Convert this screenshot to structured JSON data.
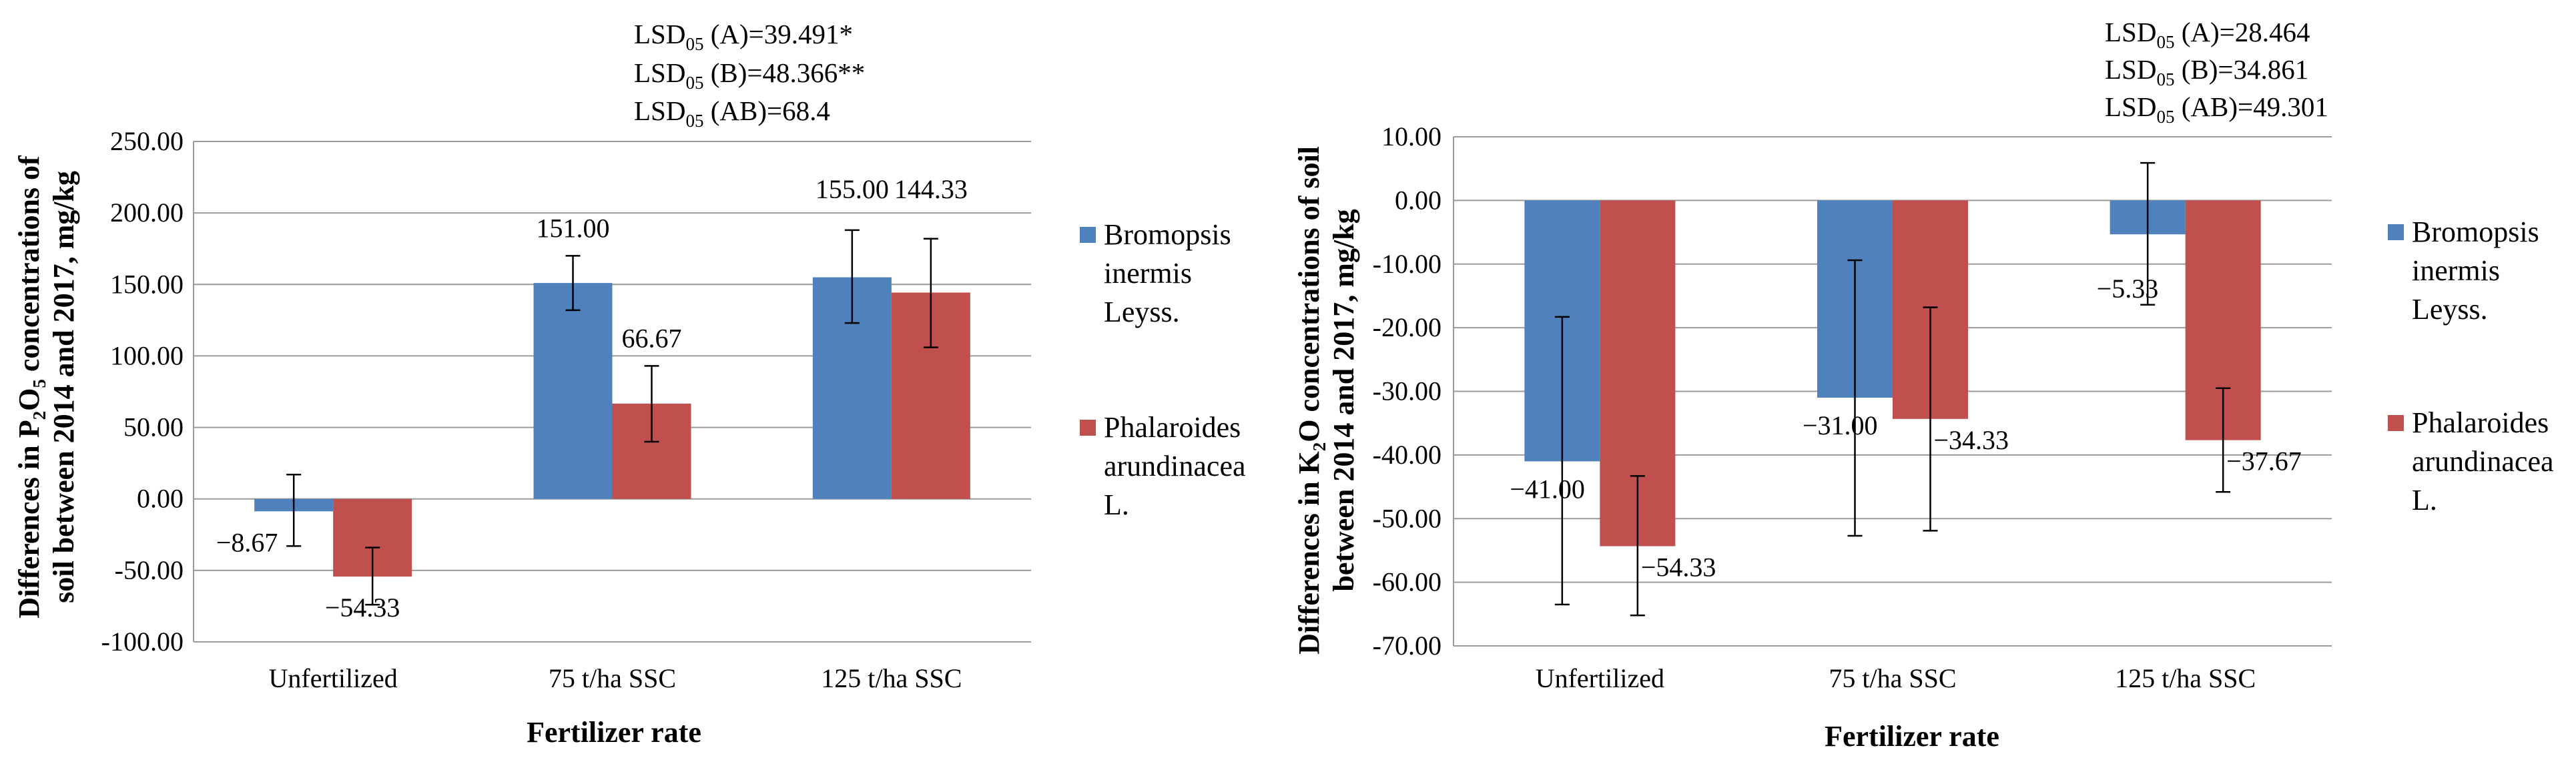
{
  "charts": [
    {
      "y_title_line1_prefix": "Differences in P",
      "y_title_sub1": "2",
      "y_title_mid": "O",
      "y_title_sub2": "5",
      "y_title_line1_suffix": " concentrations of",
      "y_title_line2": "soil between 2014 and 2017, mg/kg",
      "lsd": [
        {
          "prefix": "LSD",
          "sub": "05",
          "rest": " (A)=39.491*"
        },
        {
          "prefix": "LSD",
          "sub": "05",
          "rest": " (B)=48.366**"
        },
        {
          "prefix": "LSD",
          "sub": "05",
          "rest": " (AB)=68.4"
        }
      ]
    },
    {
      "y_title_line1_prefix": "Differences in K",
      "y_title_sub1": "2",
      "y_title_mid": "O concentrations of soil",
      "y_title_sub2": "",
      "y_title_line1_suffix": "",
      "y_title_line2": "between 2014 and 2017, mg/kg",
      "lsd": [
        {
          "prefix": "LSD",
          "sub": "05",
          "rest": " (A)=28.464"
        },
        {
          "prefix": "LSD",
          "sub": "05",
          "rest": " (B)=34.861"
        },
        {
          "prefix": "LSD",
          "sub": "05",
          "rest": " (AB)=49.301"
        }
      ]
    }
  ],
  "chart_data": [
    {
      "type": "bar",
      "title": "",
      "xlabel": "Fertilizer rate",
      "ylabel": "Differences in P2O5 concentrations of soil between 2014 and 2017, mg/kg",
      "categories": [
        "Unfertilized",
        "75 t/ha SSC",
        "125 t/ha SSC"
      ],
      "ylim": [
        -100,
        250
      ],
      "ystep": 50,
      "ytick_labels": [
        "-100.00",
        "-50.00",
        "0.00",
        "50.00",
        "100.00",
        "150.00",
        "200.00",
        "250.00"
      ],
      "grid": true,
      "legend": "right",
      "series": [
        {
          "name": "Bromopsis inermis Leyss.",
          "legend_lines": [
            "Bromopsis",
            "inermis",
            "Leyss."
          ],
          "color": "#4F81BD",
          "values": [
            -8.67,
            151.0,
            155.0
          ],
          "labels": [
            "−8.67",
            "151.00",
            "155.00"
          ],
          "err_low": [
            -33,
            132,
            123
          ],
          "err_high": [
            17,
            170,
            188
          ]
        },
        {
          "name": "Phalaroides arundinacea L.",
          "legend_lines": [
            "Phalaroides",
            "arundinacea",
            "L."
          ],
          "color": "#C0504D",
          "values": [
            -54.33,
            66.67,
            144.33
          ],
          "labels": [
            "−54.33",
            "66.67",
            "144.33"
          ],
          "err_low": [
            -74,
            40,
            106
          ],
          "err_high": [
            -34,
            93,
            182
          ]
        }
      ]
    },
    {
      "type": "bar",
      "title": "",
      "xlabel": "Fertilizer rate",
      "ylabel": "Differences in K2O concentrations of soil between 2014 and 2017, mg/kg",
      "categories": [
        "Unfertilized",
        "75 t/ha SSC",
        "125 t/ha SSC"
      ],
      "ylim": [
        -70,
        10
      ],
      "ystep": 10,
      "ytick_labels": [
        "-70.00",
        "-60.00",
        "-50.00",
        "-40.00",
        "-30.00",
        "-20.00",
        "-10.00",
        "0.00",
        "10.00"
      ],
      "grid": true,
      "legend": "right",
      "series": [
        {
          "name": "Bromopsis inermis Leyss.",
          "legend_lines": [
            "Bromopsis",
            "inermis",
            "Leyss."
          ],
          "color": "#4F81BD",
          "values": [
            -41.0,
            -31.0,
            -5.33
          ],
          "labels": [
            "−41.00",
            "−31.00",
            "−5.33"
          ],
          "err_low": [
            -63.5,
            -52.7,
            -16.4
          ],
          "err_high": [
            -18.3,
            -9.4,
            5.9
          ]
        },
        {
          "name": "Phalaroides arundinacea L.",
          "legend_lines": [
            "Phalaroides",
            "arundinacea",
            "L."
          ],
          "color": "#C0504D",
          "values": [
            -54.33,
            -34.33,
            -37.67
          ],
          "labels": [
            "−54.33",
            "−34.33",
            "−37.67"
          ],
          "err_low": [
            -65.2,
            -51.9,
            -45.8
          ],
          "err_high": [
            -43.3,
            -16.8,
            -29.5
          ]
        }
      ]
    }
  ]
}
